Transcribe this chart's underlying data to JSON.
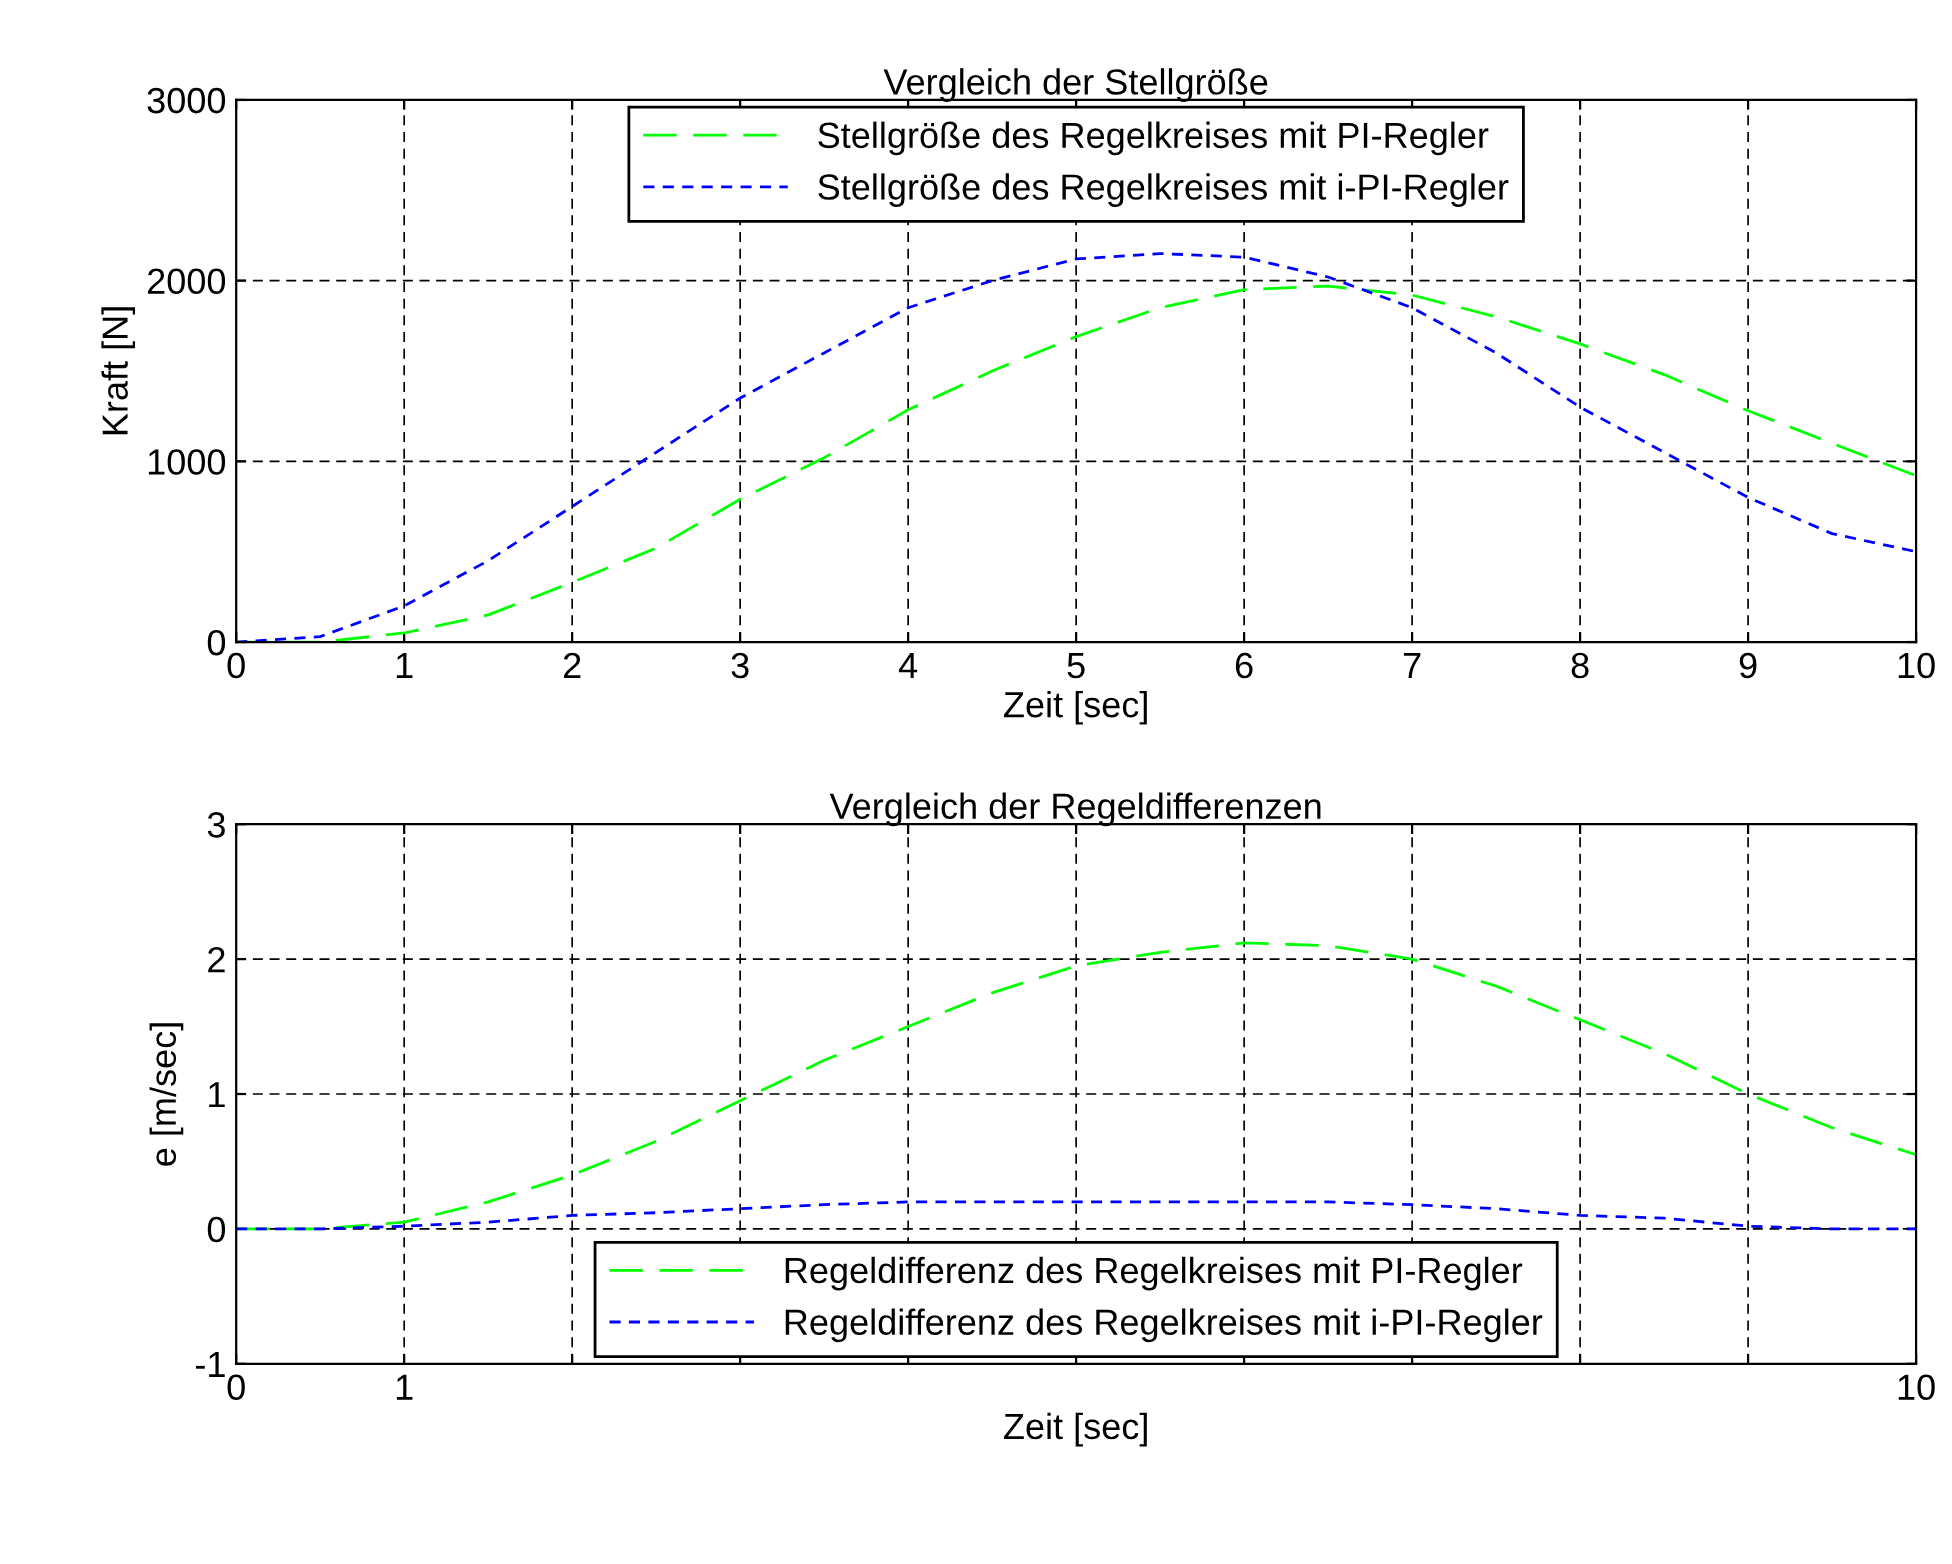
{
  "chart_data": [
    {
      "type": "line",
      "title": "Vergleich der Stellgröße",
      "xlabel": "Zeit [sec]",
      "ylabel": "Kraft [N]",
      "xlim": [
        0,
        10
      ],
      "xticks": [
        0,
        1,
        2,
        3,
        4,
        5,
        6,
        7,
        8,
        9,
        10
      ],
      "ylim": [
        0,
        3000
      ],
      "yticks": [
        0,
        1000,
        2000,
        3000
      ],
      "grid": true,
      "legend": "top",
      "line_style": "dashed",
      "x": [
        0,
        0.5,
        1,
        1.5,
        2,
        2.5,
        3,
        3.5,
        4,
        4.5,
        5,
        5.5,
        6,
        6.5,
        7,
        7.5,
        8,
        8.5,
        9,
        9.5,
        10
      ],
      "series": [
        {
          "name": "Stellgröße des Regelkreises mit PI-Regler",
          "color": "#00ff00",
          "values": [
            0,
            0,
            50,
            150,
            330,
            520,
            790,
            1020,
            1285,
            1500,
            1690,
            1850,
            1950,
            1970,
            1920,
            1800,
            1650,
            1480,
            1280,
            1100,
            920
          ]
        },
        {
          "name": "Stellgröße des Regelkreises mit i-PI-Regler",
          "color": "#0000ff",
          "values": [
            0,
            30,
            200,
            450,
            750,
            1050,
            1350,
            1600,
            1850,
            2000,
            2120,
            2150,
            2130,
            2020,
            1850,
            1600,
            1300,
            1050,
            800,
            600,
            500
          ]
        }
      ]
    },
    {
      "type": "line",
      "title": "Vergleich der Regeldifferenzen",
      "xlabel": "Zeit [sec]",
      "ylabel": "e [m/sec]",
      "xlim": [
        0,
        10
      ],
      "xticks": [
        0,
        1,
        {
          "value": 2,
          "label": null
        },
        {
          "value": 3,
          "label": null
        },
        {
          "value": 4,
          "label": null
        },
        {
          "value": 5,
          "label": null
        },
        {
          "value": 6,
          "label": null
        },
        {
          "value": 7,
          "label": null
        },
        {
          "value": 8,
          "label": null
        },
        {
          "value": 9,
          "label": null
        },
        10
      ],
      "ylim": [
        -1,
        3
      ],
      "yticks": [
        -1,
        0,
        1,
        2,
        3
      ],
      "grid": true,
      "legend": "bottom",
      "line_style": "dashed",
      "x": [
        0,
        0.5,
        1,
        1.5,
        2,
        2.5,
        3,
        3.5,
        4,
        4.5,
        5,
        5.5,
        6,
        6.5,
        7,
        7.5,
        8,
        8.5,
        9,
        9.5,
        10
      ],
      "series": [
        {
          "name": "Regeldifferenz des Regelkreises mit PI-Regler",
          "color": "#00ff00",
          "values": [
            0,
            0,
            0.05,
            0.2,
            0.4,
            0.65,
            0.95,
            1.25,
            1.5,
            1.75,
            1.95,
            2.05,
            2.12,
            2.1,
            2.0,
            1.8,
            1.55,
            1.3,
            1.0,
            0.75,
            0.55
          ]
        },
        {
          "name": "Regeldifferenz des Regelkreises mit i-PI-Regler",
          "color": "#0000ff",
          "values": [
            0,
            0,
            0.02,
            0.05,
            0.1,
            0.12,
            0.15,
            0.18,
            0.2,
            0.2,
            0.2,
            0.2,
            0.2,
            0.2,
            0.18,
            0.15,
            0.1,
            0.08,
            0.02,
            0,
            0
          ]
        }
      ]
    }
  ]
}
